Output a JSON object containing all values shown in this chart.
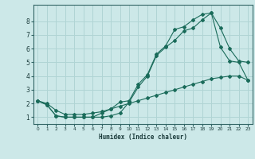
{
  "xlabel": "Humidex (Indice chaleur)",
  "bg_color": "#cce8e8",
  "grid_color": "#b0d4d4",
  "line_color": "#1a6b5a",
  "xlim": [
    -0.5,
    23.5
  ],
  "ylim": [
    0.5,
    9.2
  ],
  "xticks": [
    0,
    1,
    2,
    3,
    4,
    5,
    6,
    7,
    8,
    9,
    10,
    11,
    12,
    13,
    14,
    15,
    16,
    17,
    18,
    19,
    20,
    21,
    22,
    23
  ],
  "yticks": [
    1,
    2,
    3,
    4,
    5,
    6,
    7,
    8
  ],
  "line1_x": [
    0,
    1,
    2,
    3,
    4,
    5,
    6,
    7,
    8,
    9,
    10,
    11,
    12,
    13,
    14,
    15,
    16,
    17,
    18,
    19,
    20,
    21,
    22,
    23
  ],
  "line1_y": [
    2.2,
    1.9,
    1.1,
    1.0,
    1.0,
    1.0,
    1.0,
    1.0,
    1.1,
    1.3,
    2.1,
    3.2,
    4.0,
    5.5,
    6.1,
    6.6,
    7.3,
    7.5,
    8.1,
    8.6,
    7.5,
    6.0,
    5.1,
    5.0
  ],
  "line2_x": [
    0,
    1,
    2,
    3,
    4,
    5,
    6,
    7,
    8,
    9,
    10,
    11,
    12,
    13,
    14,
    15,
    16,
    17,
    18,
    19,
    20,
    21,
    22,
    23
  ],
  "line2_y": [
    2.2,
    1.9,
    1.1,
    1.0,
    1.0,
    1.0,
    1.0,
    1.3,
    1.6,
    2.1,
    2.2,
    3.4,
    4.1,
    5.6,
    6.2,
    7.4,
    7.6,
    8.1,
    8.5,
    8.6,
    6.1,
    5.1,
    5.0,
    3.7
  ],
  "line3_x": [
    0,
    1,
    2,
    3,
    4,
    5,
    6,
    7,
    8,
    9,
    10,
    11,
    12,
    13,
    14,
    15,
    16,
    17,
    18,
    19,
    20,
    21,
    22,
    23
  ],
  "line3_y": [
    2.2,
    2.0,
    1.5,
    1.2,
    1.2,
    1.2,
    1.3,
    1.4,
    1.6,
    1.8,
    2.0,
    2.2,
    2.4,
    2.6,
    2.8,
    3.0,
    3.2,
    3.4,
    3.6,
    3.8,
    3.9,
    4.0,
    4.0,
    3.7
  ]
}
